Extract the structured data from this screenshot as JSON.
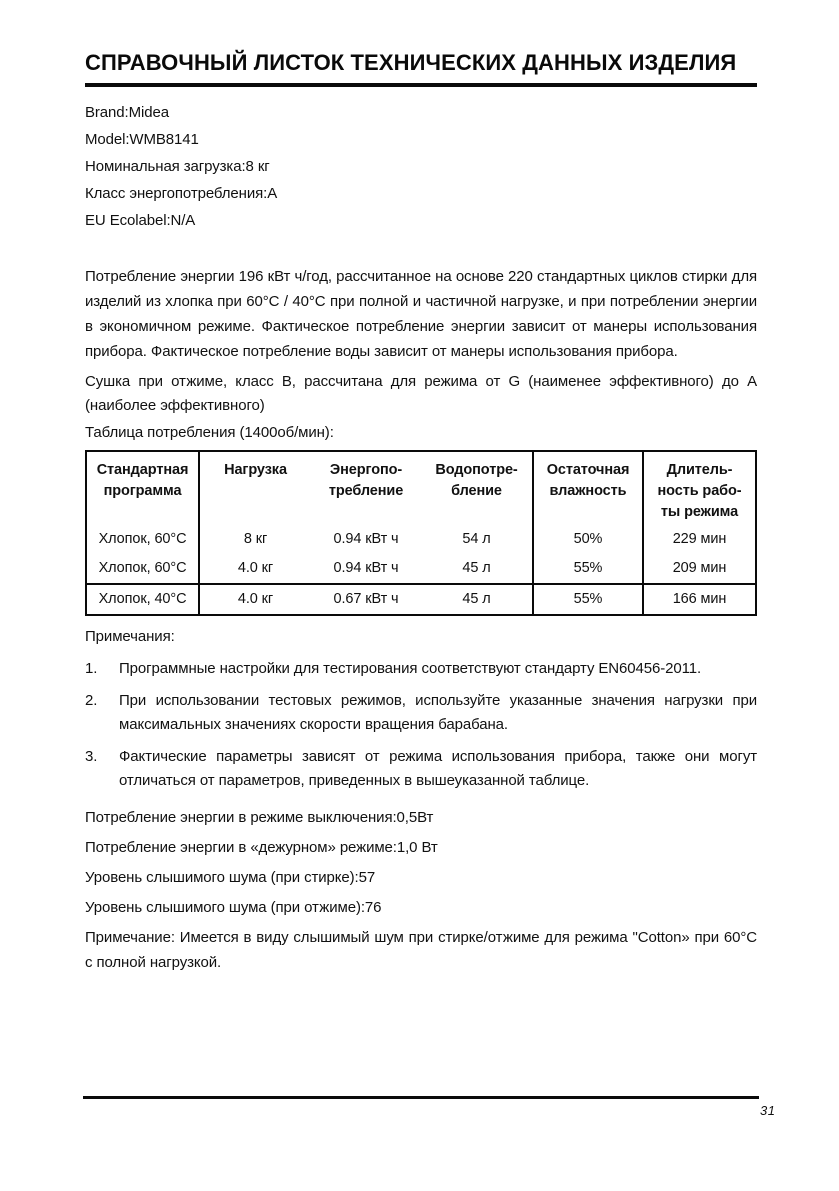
{
  "title": "СПРАВОЧНЫЙ ЛИСТОК ТЕХНИЧЕСКИХ ДАННЫХ ИЗДЕЛИЯ",
  "specs": [
    "Brand:Midea",
    "Model:WMB8141",
    "Номинальная загрузка:8 кг",
    "Класс энергопотребления:A",
    "EU Ecolabel:N/A"
  ],
  "paragraphs": {
    "energy": "Потребление энергии 196 кВт ч/год, рассчитанное на основе 220 стандартных циклов стирки для изделий из хлопка при 60°C / 40°C при полной и частичной нагрузке, и при потреблении энергии в экономичном режиме. Фактическое потребление энергии зависит от манеры использования прибора. Фактическое потребление воды зависит от манеры использования прибора.",
    "drying": "Сушка при отжиме, класс B, рассчитана для режима от G (наименее эффективного) до A (наиболее эффективного)",
    "table_caption": "Таблица потребления (1400об/мин):"
  },
  "table": {
    "headers": [
      "Стандартная\nпрограмма",
      "Нагрузка",
      "Энергопо-\nтребление",
      "Водопотре-\nбление",
      "Остаточная\nвлажность",
      "Длитель-\nность рабо-\nты режима"
    ],
    "rows": [
      [
        "Хлопок, 60°C",
        "8 кг",
        "0.94 кВт ч",
        "54 л",
        "50%",
        "229 мин"
      ],
      [
        "Хлопок, 60°C",
        "4.0 кг",
        "0.94 кВт ч",
        "45 л",
        "55%",
        "209 мин"
      ],
      [
        "Хлопок, 40°C",
        "4.0 кг",
        "0.67 кВт ч",
        "45 л",
        "55%",
        "166 мин"
      ]
    ]
  },
  "notes": {
    "title": "Примечания:",
    "items": [
      {
        "num": "1.",
        "text": "Программные настройки для тестирования соответствуют стандарту EN60456-2011."
      },
      {
        "num": "2.",
        "text": "При использовании тестовых режимов, используйте указанные значения нагрузки при максимальных значениях скорости вращения барабана."
      },
      {
        "num": "3.",
        "text": "Фактические параметры зависят от режима использования прибора, также они могут отличаться от параметров, приведенных в вышеуказанной таблице."
      }
    ]
  },
  "bottom_specs": [
    "Потребление энергии в режиме выключения:0,5Вт",
    "Потребление энергии в «дежурном» режиме:1,0 Вт",
    "Уровень слышимого шума (при стирке):57",
    "Уровень слышимого шума (при отжиме):76"
  ],
  "footnote": "Примечание: Имеется в виду слышимый шум при стирке/отжиме для режима \"Cotton» при 60°C с полной нагрузкой.",
  "page_number": "31"
}
